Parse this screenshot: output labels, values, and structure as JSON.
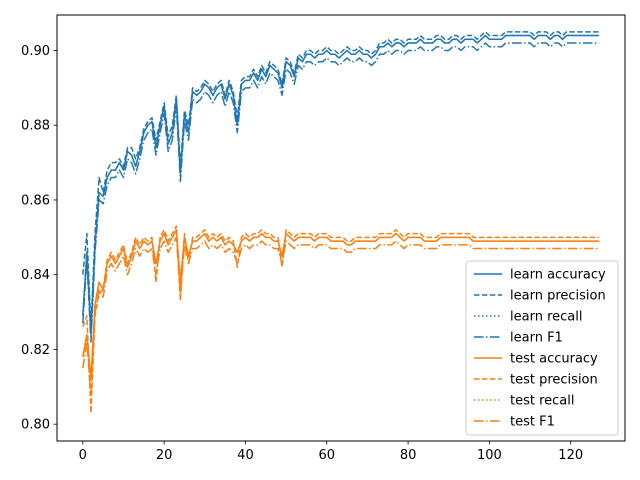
{
  "chart_data": {
    "type": "line",
    "title": "",
    "xlabel": "",
    "ylabel": "",
    "xlim": [
      -6.35,
      133.35
    ],
    "ylim": [
      0.7955,
      0.9095
    ],
    "xticks": [
      0,
      20,
      40,
      60,
      80,
      100,
      120
    ],
    "xtick_labels": [
      "0",
      "20",
      "40",
      "60",
      "80",
      "100",
      "120"
    ],
    "yticks": [
      0.8,
      0.82,
      0.84,
      0.86,
      0.88,
      0.9
    ],
    "ytick_labels": [
      "0.80",
      "0.82",
      "0.84",
      "0.86",
      "0.88",
      "0.90"
    ],
    "grid": false,
    "legend_position": "bottom-right",
    "series": [
      {
        "name": "learn accuracy",
        "color": "#1f77b4",
        "dash": "solid",
        "values": [
          0.829,
          0.846,
          0.824,
          0.848,
          0.862,
          0.861,
          0.866,
          0.868,
          0.868,
          0.87,
          0.868,
          0.873,
          0.872,
          0.869,
          0.873,
          0.878,
          0.88,
          0.881,
          0.874,
          0.88,
          0.885,
          0.875,
          0.878,
          0.887,
          0.867,
          0.883,
          0.878,
          0.889,
          0.888,
          0.889,
          0.891,
          0.89,
          0.888,
          0.89,
          0.891,
          0.887,
          0.891,
          0.888,
          0.88,
          0.891,
          0.892,
          0.892,
          0.894,
          0.892,
          0.895,
          0.893,
          0.896,
          0.895,
          0.894,
          0.89,
          0.897,
          0.896,
          0.893,
          0.898,
          0.897,
          0.899,
          0.899,
          0.898,
          0.899,
          0.899,
          0.9,
          0.899,
          0.899,
          0.898,
          0.899,
          0.9,
          0.899,
          0.899,
          0.9,
          0.899,
          0.899,
          0.898,
          0.899,
          0.901,
          0.901,
          0.902,
          0.901,
          0.902,
          0.902,
          0.901,
          0.902,
          0.902,
          0.902,
          0.903,
          0.902,
          0.902,
          0.902,
          0.903,
          0.903,
          0.902,
          0.902,
          0.903,
          0.903,
          0.902,
          0.903,
          0.903,
          0.903,
          0.902,
          0.903,
          0.904,
          0.903,
          0.903,
          0.903,
          0.903,
          0.904,
          0.904,
          0.904,
          0.904,
          0.904,
          0.904,
          0.904,
          0.903,
          0.904,
          0.904,
          0.904,
          0.903,
          0.904,
          0.904,
          0.903,
          0.904,
          0.904,
          0.904,
          0.904,
          0.904,
          0.904,
          0.904,
          0.904,
          0.904
        ]
      },
      {
        "name": "learn precision",
        "color": "#1f77b4",
        "dash": "dashed",
        "values": [
          0.84,
          0.851,
          0.826,
          0.851,
          0.866,
          0.862,
          0.868,
          0.87,
          0.87,
          0.871,
          0.869,
          0.874,
          0.874,
          0.871,
          0.874,
          0.879,
          0.881,
          0.882,
          0.876,
          0.881,
          0.886,
          0.877,
          0.88,
          0.888,
          0.869,
          0.884,
          0.88,
          0.89,
          0.889,
          0.89,
          0.892,
          0.891,
          0.889,
          0.891,
          0.892,
          0.888,
          0.892,
          0.889,
          0.882,
          0.892,
          0.893,
          0.893,
          0.895,
          0.893,
          0.896,
          0.894,
          0.897,
          0.896,
          0.895,
          0.891,
          0.898,
          0.897,
          0.894,
          0.899,
          0.898,
          0.9,
          0.9,
          0.899,
          0.9,
          0.9,
          0.901,
          0.9,
          0.9,
          0.899,
          0.9,
          0.901,
          0.9,
          0.9,
          0.901,
          0.9,
          0.9,
          0.899,
          0.9,
          0.902,
          0.902,
          0.903,
          0.902,
          0.903,
          0.903,
          0.902,
          0.903,
          0.903,
          0.903,
          0.904,
          0.903,
          0.903,
          0.903,
          0.904,
          0.904,
          0.903,
          0.903,
          0.904,
          0.904,
          0.903,
          0.904,
          0.904,
          0.904,
          0.903,
          0.904,
          0.905,
          0.904,
          0.904,
          0.904,
          0.904,
          0.905,
          0.905,
          0.905,
          0.905,
          0.905,
          0.905,
          0.905,
          0.904,
          0.905,
          0.905,
          0.905,
          0.904,
          0.905,
          0.905,
          0.904,
          0.905,
          0.905,
          0.905,
          0.905,
          0.905,
          0.905,
          0.905,
          0.905,
          0.905
        ]
      },
      {
        "name": "learn recall",
        "color": "#1f77b4",
        "dash": "dotted",
        "values": [
          0.829,
          0.846,
          0.824,
          0.848,
          0.862,
          0.861,
          0.866,
          0.868,
          0.868,
          0.87,
          0.868,
          0.873,
          0.872,
          0.869,
          0.873,
          0.878,
          0.88,
          0.881,
          0.874,
          0.88,
          0.885,
          0.875,
          0.878,
          0.887,
          0.867,
          0.883,
          0.878,
          0.889,
          0.888,
          0.889,
          0.891,
          0.89,
          0.888,
          0.89,
          0.891,
          0.887,
          0.891,
          0.888,
          0.88,
          0.891,
          0.892,
          0.892,
          0.894,
          0.892,
          0.895,
          0.893,
          0.896,
          0.895,
          0.894,
          0.89,
          0.897,
          0.896,
          0.893,
          0.898,
          0.897,
          0.899,
          0.899,
          0.898,
          0.899,
          0.899,
          0.9,
          0.899,
          0.899,
          0.898,
          0.899,
          0.9,
          0.899,
          0.899,
          0.9,
          0.899,
          0.899,
          0.898,
          0.899,
          0.901,
          0.901,
          0.902,
          0.901,
          0.902,
          0.902,
          0.901,
          0.902,
          0.902,
          0.902,
          0.903,
          0.902,
          0.902,
          0.902,
          0.903,
          0.903,
          0.902,
          0.902,
          0.903,
          0.903,
          0.902,
          0.903,
          0.903,
          0.903,
          0.902,
          0.903,
          0.904,
          0.903,
          0.903,
          0.903,
          0.903,
          0.904,
          0.904,
          0.904,
          0.904,
          0.904,
          0.904,
          0.904,
          0.903,
          0.904,
          0.904,
          0.904,
          0.903,
          0.904,
          0.904,
          0.903,
          0.904,
          0.904,
          0.904,
          0.904,
          0.904,
          0.904,
          0.904,
          0.904,
          0.904
        ]
      },
      {
        "name": "learn F1",
        "color": "#1f77b4",
        "dash": "dashdot",
        "values": [
          0.827,
          0.844,
          0.822,
          0.846,
          0.86,
          0.859,
          0.864,
          0.866,
          0.866,
          0.868,
          0.866,
          0.871,
          0.87,
          0.867,
          0.871,
          0.876,
          0.878,
          0.879,
          0.872,
          0.878,
          0.883,
          0.873,
          0.876,
          0.885,
          0.865,
          0.881,
          0.876,
          0.887,
          0.886,
          0.887,
          0.889,
          0.888,
          0.886,
          0.888,
          0.889,
          0.885,
          0.889,
          0.886,
          0.878,
          0.889,
          0.89,
          0.89,
          0.892,
          0.89,
          0.893,
          0.891,
          0.894,
          0.893,
          0.892,
          0.888,
          0.895,
          0.894,
          0.891,
          0.896,
          0.895,
          0.897,
          0.897,
          0.896,
          0.897,
          0.897,
          0.898,
          0.897,
          0.897,
          0.896,
          0.897,
          0.898,
          0.897,
          0.897,
          0.898,
          0.897,
          0.897,
          0.896,
          0.897,
          0.899,
          0.899,
          0.9,
          0.899,
          0.9,
          0.9,
          0.899,
          0.9,
          0.9,
          0.9,
          0.901,
          0.9,
          0.9,
          0.9,
          0.901,
          0.901,
          0.9,
          0.9,
          0.901,
          0.901,
          0.9,
          0.901,
          0.901,
          0.901,
          0.9,
          0.901,
          0.902,
          0.901,
          0.901,
          0.901,
          0.901,
          0.902,
          0.902,
          0.902,
          0.902,
          0.902,
          0.902,
          0.902,
          0.901,
          0.902,
          0.902,
          0.902,
          0.901,
          0.902,
          0.902,
          0.901,
          0.902,
          0.902,
          0.902,
          0.902,
          0.902,
          0.902,
          0.902,
          0.902,
          0.902
        ]
      },
      {
        "name": "test accuracy",
        "color": "#ff7f0e",
        "dash": "solid",
        "values": [
          0.818,
          0.824,
          0.812,
          0.832,
          0.838,
          0.836,
          0.843,
          0.845,
          0.843,
          0.845,
          0.847,
          0.842,
          0.845,
          0.849,
          0.847,
          0.849,
          0.848,
          0.849,
          0.843,
          0.849,
          0.851,
          0.848,
          0.85,
          0.852,
          0.838,
          0.85,
          0.845,
          0.849,
          0.849,
          0.85,
          0.851,
          0.849,
          0.85,
          0.849,
          0.85,
          0.848,
          0.849,
          0.848,
          0.846,
          0.849,
          0.85,
          0.849,
          0.85,
          0.85,
          0.851,
          0.85,
          0.85,
          0.849,
          0.849,
          0.845,
          0.851,
          0.85,
          0.849,
          0.85,
          0.85,
          0.85,
          0.85,
          0.849,
          0.85,
          0.85,
          0.85,
          0.849,
          0.849,
          0.849,
          0.849,
          0.848,
          0.848,
          0.849,
          0.849,
          0.849,
          0.849,
          0.849,
          0.849,
          0.85,
          0.85,
          0.85,
          0.85,
          0.851,
          0.85,
          0.849,
          0.85,
          0.85,
          0.85,
          0.85,
          0.849,
          0.849,
          0.849,
          0.849,
          0.85,
          0.85,
          0.85,
          0.85,
          0.85,
          0.85,
          0.85,
          0.85,
          0.849,
          0.849,
          0.849,
          0.849,
          0.849,
          0.849,
          0.849,
          0.849,
          0.849,
          0.849,
          0.849,
          0.849,
          0.849,
          0.849,
          0.849,
          0.849,
          0.849,
          0.849,
          0.849,
          0.849,
          0.849,
          0.849,
          0.849,
          0.849,
          0.849,
          0.849,
          0.849,
          0.849,
          0.849,
          0.849,
          0.849,
          0.849
        ]
      },
      {
        "name": "test precision",
        "color": "#ff7f0e",
        "dash": "dashed",
        "values": [
          0.826,
          0.829,
          0.803,
          0.829,
          0.835,
          0.836,
          0.844,
          0.846,
          0.844,
          0.846,
          0.848,
          0.843,
          0.846,
          0.85,
          0.848,
          0.85,
          0.849,
          0.85,
          0.838,
          0.85,
          0.852,
          0.849,
          0.851,
          0.853,
          0.833,
          0.851,
          0.843,
          0.85,
          0.85,
          0.851,
          0.852,
          0.85,
          0.851,
          0.85,
          0.851,
          0.849,
          0.85,
          0.849,
          0.842,
          0.85,
          0.851,
          0.85,
          0.851,
          0.851,
          0.852,
          0.851,
          0.851,
          0.85,
          0.85,
          0.842,
          0.852,
          0.851,
          0.85,
          0.851,
          0.851,
          0.851,
          0.851,
          0.85,
          0.851,
          0.851,
          0.851,
          0.85,
          0.85,
          0.85,
          0.85,
          0.849,
          0.849,
          0.85,
          0.85,
          0.85,
          0.85,
          0.85,
          0.85,
          0.851,
          0.851,
          0.851,
          0.851,
          0.852,
          0.851,
          0.85,
          0.851,
          0.851,
          0.851,
          0.851,
          0.85,
          0.85,
          0.85,
          0.85,
          0.851,
          0.851,
          0.851,
          0.851,
          0.851,
          0.851,
          0.851,
          0.851,
          0.85,
          0.85,
          0.85,
          0.85,
          0.85,
          0.85,
          0.85,
          0.85,
          0.85,
          0.85,
          0.85,
          0.85,
          0.85,
          0.85,
          0.85,
          0.85,
          0.85,
          0.85,
          0.85,
          0.85,
          0.85,
          0.85,
          0.85,
          0.85,
          0.85,
          0.85,
          0.85,
          0.85,
          0.85,
          0.85,
          0.85,
          0.85
        ]
      },
      {
        "name": "test recall",
        "color": "#ff7f0e",
        "dash": "dotted",
        "values": [
          0.818,
          0.824,
          0.812,
          0.832,
          0.838,
          0.836,
          0.843,
          0.845,
          0.843,
          0.845,
          0.847,
          0.842,
          0.845,
          0.849,
          0.847,
          0.849,
          0.848,
          0.849,
          0.843,
          0.849,
          0.851,
          0.848,
          0.85,
          0.852,
          0.838,
          0.85,
          0.845,
          0.849,
          0.849,
          0.85,
          0.851,
          0.849,
          0.85,
          0.849,
          0.85,
          0.848,
          0.849,
          0.848,
          0.846,
          0.849,
          0.85,
          0.849,
          0.85,
          0.85,
          0.851,
          0.85,
          0.85,
          0.849,
          0.849,
          0.845,
          0.851,
          0.85,
          0.849,
          0.85,
          0.85,
          0.85,
          0.85,
          0.849,
          0.85,
          0.85,
          0.85,
          0.849,
          0.849,
          0.849,
          0.849,
          0.848,
          0.848,
          0.849,
          0.849,
          0.849,
          0.849,
          0.849,
          0.849,
          0.85,
          0.85,
          0.85,
          0.85,
          0.851,
          0.85,
          0.849,
          0.85,
          0.85,
          0.85,
          0.85,
          0.849,
          0.849,
          0.849,
          0.849,
          0.85,
          0.85,
          0.85,
          0.85,
          0.85,
          0.85,
          0.85,
          0.85,
          0.849,
          0.849,
          0.849,
          0.849,
          0.849,
          0.849,
          0.849,
          0.849,
          0.849,
          0.849,
          0.849,
          0.849,
          0.849,
          0.849,
          0.849,
          0.849,
          0.849,
          0.849,
          0.849,
          0.849,
          0.849,
          0.849,
          0.849,
          0.849,
          0.849,
          0.849,
          0.849,
          0.849,
          0.849,
          0.849,
          0.849,
          0.849
        ]
      },
      {
        "name": "test F1",
        "color": "#ff7f0e",
        "dash": "dashdot",
        "values": [
          0.815,
          0.822,
          0.808,
          0.83,
          0.836,
          0.834,
          0.841,
          0.843,
          0.841,
          0.843,
          0.845,
          0.84,
          0.843,
          0.847,
          0.845,
          0.847,
          0.846,
          0.847,
          0.84,
          0.847,
          0.849,
          0.846,
          0.848,
          0.85,
          0.835,
          0.848,
          0.843,
          0.847,
          0.847,
          0.848,
          0.849,
          0.847,
          0.848,
          0.847,
          0.848,
          0.846,
          0.847,
          0.846,
          0.843,
          0.847,
          0.848,
          0.847,
          0.848,
          0.848,
          0.849,
          0.848,
          0.848,
          0.847,
          0.847,
          0.843,
          0.849,
          0.848,
          0.847,
          0.848,
          0.848,
          0.848,
          0.848,
          0.847,
          0.848,
          0.848,
          0.848,
          0.847,
          0.847,
          0.847,
          0.847,
          0.846,
          0.846,
          0.847,
          0.847,
          0.847,
          0.847,
          0.847,
          0.847,
          0.848,
          0.848,
          0.848,
          0.848,
          0.849,
          0.848,
          0.847,
          0.848,
          0.848,
          0.848,
          0.848,
          0.847,
          0.847,
          0.847,
          0.847,
          0.848,
          0.848,
          0.848,
          0.848,
          0.848,
          0.848,
          0.848,
          0.848,
          0.847,
          0.847,
          0.847,
          0.847,
          0.847,
          0.847,
          0.847,
          0.847,
          0.847,
          0.847,
          0.847,
          0.847,
          0.847,
          0.847,
          0.847,
          0.847,
          0.847,
          0.847,
          0.847,
          0.847,
          0.847,
          0.847,
          0.847,
          0.847,
          0.847,
          0.847,
          0.847,
          0.847,
          0.847,
          0.847,
          0.847,
          0.847
        ]
      }
    ]
  }
}
